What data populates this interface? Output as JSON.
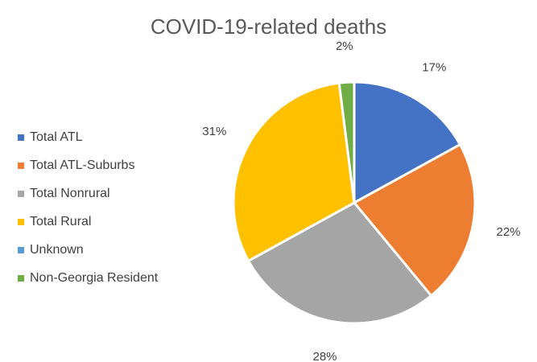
{
  "chart_data": {
    "type": "pie",
    "title": "COVID-19-related deaths",
    "legend_position": "left",
    "slices": [
      {
        "name": "Total ATL",
        "value": 17,
        "label": "17%",
        "color": "#4472C4"
      },
      {
        "name": "Total ATL-Suburbs",
        "value": 22,
        "label": "22%",
        "color": "#ED7D31"
      },
      {
        "name": "Total Nonrural",
        "value": 28,
        "label": "28%",
        "color": "#A5A5A5"
      },
      {
        "name": "Total Rural",
        "value": 31,
        "label": "31%",
        "color": "#FFC000"
      },
      {
        "name": "Unknown",
        "value": 0,
        "label": "",
        "color": "#5B9BD5"
      },
      {
        "name": "Non-Georgia Resident",
        "value": 2,
        "label": "2%",
        "color": "#70AD47"
      }
    ]
  }
}
